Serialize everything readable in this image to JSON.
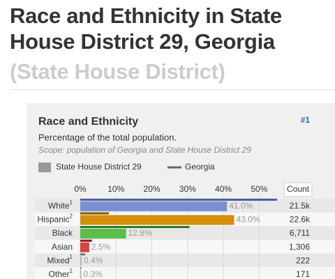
{
  "page": {
    "title": "Race and Ethnicity in State House District 29, Georgia",
    "subtitle": "(State House District)"
  },
  "chart_data": {
    "type": "bar",
    "orientation": "horizontal",
    "title": "Race and Ethnicity",
    "badge": "#1",
    "subtitle": "Percentage of the total population.",
    "scope": "Scope: population of Georgia and State House District 29",
    "count_header": "Count",
    "categories": [
      "White",
      "Hispanic",
      "Black",
      "Asian",
      "Mixed",
      "Other"
    ],
    "notes": [
      "1",
      "2",
      null,
      null,
      "1",
      "1"
    ],
    "xlim": [
      0,
      55
    ],
    "xticks": [
      {
        "value": 0,
        "label": "0%"
      },
      {
        "value": 10,
        "label": "10%"
      },
      {
        "value": 20,
        "label": "20%"
      },
      {
        "value": 30,
        "label": "30%"
      },
      {
        "value": 40,
        "label": "40%"
      },
      {
        "value": 50,
        "label": "50%"
      }
    ],
    "grid": true,
    "series": [
      {
        "name": "State House District 29",
        "color": "#999999",
        "colors": [
          "#7b8fd4",
          "#d4900a",
          "#5cbd4a",
          "#d94040",
          "#b5b5b5",
          "#b5b5b5"
        ],
        "values": [
          41.0,
          43.0,
          12.8,
          2.5,
          0.4,
          0.3
        ],
        "value_labels": [
          "41.0%",
          "43.0%",
          "12.8%",
          "2.5%",
          "0.4%",
          "0.3%"
        ]
      },
      {
        "name": "Georgia",
        "color": "#666666",
        "colors": [
          "#4a5a9e",
          "#8a5c00",
          "#2d7a22",
          "#8a1a1a",
          "#777777",
          "#777777"
        ],
        "values": [
          55,
          8.0,
          30.5,
          3.3,
          1.4,
          0.3
        ]
      }
    ],
    "counts": [
      "21.5k",
      "22.6k",
      "6,711",
      "1,306",
      "222",
      "171"
    ]
  }
}
